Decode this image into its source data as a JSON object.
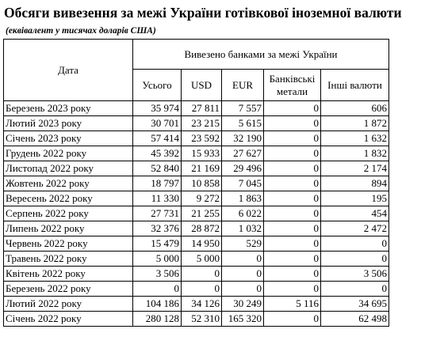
{
  "title": "Обсяги вивезення за межі України готівкової іноземної валюти",
  "subtitle": "(еквівалент у тисячах доларів США)",
  "table": {
    "date_header": "Дата",
    "group_header": "Вивезено банками за межі України",
    "columns": [
      "Усього",
      "USD",
      "EUR",
      "Банківські метали",
      "Інші валюти"
    ],
    "rows": [
      {
        "date": "Березень 2023 року",
        "values": [
          "35 974",
          "27 811",
          "7 557",
          "0",
          "606"
        ]
      },
      {
        "date": "Лютий 2023 року",
        "values": [
          "30 701",
          "23 215",
          "5 615",
          "0",
          "1 872"
        ]
      },
      {
        "date": "Січень 2023 року",
        "values": [
          "57 414",
          "23 592",
          "32 190",
          "0",
          "1 632"
        ]
      },
      {
        "date": "Грудень 2022 року",
        "values": [
          "45 392",
          "15 933",
          "27 627",
          "0",
          "1 832"
        ]
      },
      {
        "date": "Листопад 2022 року",
        "values": [
          "52 840",
          "21 169",
          "29 496",
          "0",
          "2 174"
        ]
      },
      {
        "date": "Жовтень 2022 року",
        "values": [
          "18 797",
          "10 858",
          "7 045",
          "0",
          "894"
        ]
      },
      {
        "date": "Вересень 2022 року",
        "values": [
          "11 330",
          "9 272",
          "1 863",
          "0",
          "195"
        ]
      },
      {
        "date": "Серпень 2022 року",
        "values": [
          "27 731",
          "21 255",
          "6 022",
          "0",
          "454"
        ]
      },
      {
        "date": "Липень 2022 року",
        "values": [
          "32 376",
          "28 872",
          "1 032",
          "0",
          "2 472"
        ]
      },
      {
        "date": "Червень 2022 року",
        "values": [
          "15 479",
          "14 950",
          "529",
          "0",
          "0"
        ]
      },
      {
        "date": "Травень 2022 року",
        "values": [
          "5 000",
          "5 000",
          "0",
          "0",
          "0"
        ]
      },
      {
        "date": "Квітень 2022 року",
        "values": [
          "3 506",
          "0",
          "0",
          "0",
          "3 506"
        ]
      },
      {
        "date": "Березень 2022 року",
        "values": [
          "0",
          "0",
          "0",
          "0",
          "0"
        ]
      },
      {
        "date": "Лютий 2022 року",
        "values": [
          "104 186",
          "34 126",
          "30 249",
          "5 116",
          "34 695"
        ]
      },
      {
        "date": "Січень 2022 року",
        "values": [
          "280 128",
          "52 310",
          "165 320",
          "0",
          "62 498"
        ]
      }
    ]
  }
}
